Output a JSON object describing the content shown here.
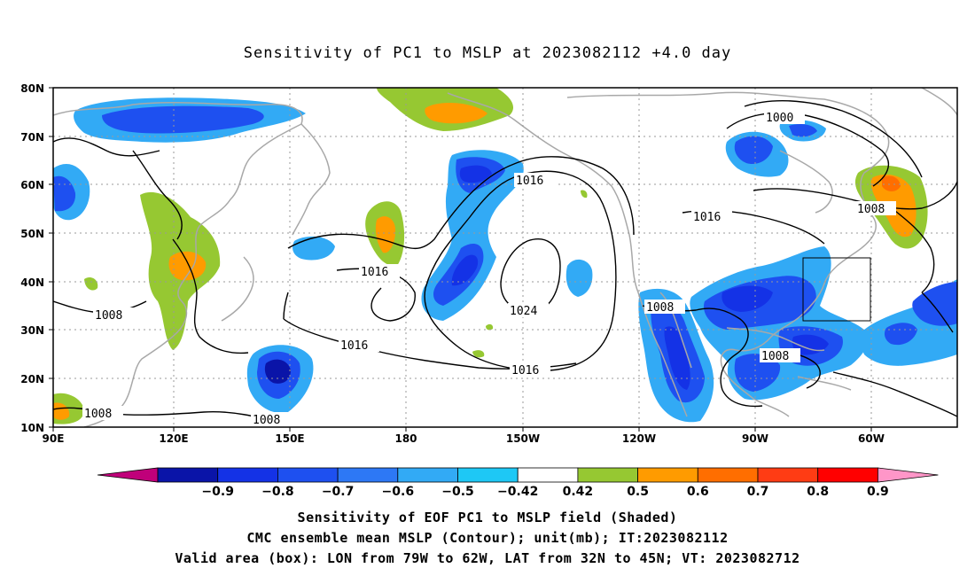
{
  "title": "Sensitivity of PC1 to MSLP at 2023082112 +4.0 day",
  "map": {
    "lat_labels": [
      "80N",
      "70N",
      "60N",
      "50N",
      "40N",
      "30N",
      "20N",
      "10N"
    ],
    "lon_labels": [
      "90E",
      "120E",
      "150E",
      "180",
      "150W",
      "120W",
      "90W",
      "60W"
    ],
    "valid_box": {
      "lon_from": -79,
      "lon_to": -62,
      "lat_from": 32,
      "lat_to": 45
    },
    "contour_labels": [
      "1000",
      "1008",
      "1016",
      "1016",
      "1016",
      "1016",
      "1024",
      "1016",
      "1008",
      "1008",
      "1008",
      "1008",
      "1008"
    ]
  },
  "colorbar": {
    "labels": [
      "-0.9",
      "-0.8",
      "-0.7",
      "-0.6",
      "-0.5",
      "-0.42",
      "0.42",
      "0.5",
      "0.6",
      "0.7",
      "0.8",
      "0.9"
    ],
    "colors": [
      "#c0007a",
      "#0a14a8",
      "#1432e6",
      "#1e50f0",
      "#2d78f5",
      "#32aaf5",
      "#1ec8f5",
      "#ffffff",
      "#96c832",
      "#ff9b00",
      "#ff6e00",
      "#ff3c14",
      "#ff0000",
      "#ff96c8"
    ]
  },
  "captions": {
    "line1": "Sensitivity of EOF PC1 to MSLP field (Shaded)",
    "line2": "CMC ensemble mean MSLP (Contour); unit(mb); IT:2023082112",
    "line3": "Valid area (box): LON from 79W to 62W, LAT from 32N to 45N; VT: 2023082712"
  }
}
